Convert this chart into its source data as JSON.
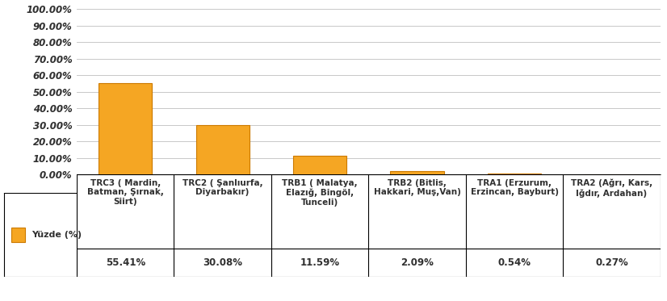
{
  "categories": [
    "TRC3 ( Mardin,\nBatman, Şırnak,\nSiirt)",
    "TRC2 ( Şanlıurfa,\nDiyarbakır)",
    "TRB1 ( Malatya,\nElazığ, Bingöl,\nTunceli)",
    "TRB2 (Bitlis,\nHakkari, Muş,Van)",
    "TRA1 (Erzurum,\nErzincan, Bayburt)",
    "TRA2 (Ağrı, Kars,\nIğdır, Ardahan)"
  ],
  "values": [
    55.41,
    30.08,
    11.59,
    2.09,
    0.54,
    0.27
  ],
  "value_labels": [
    "55.41%",
    "30.08%",
    "11.59%",
    "2.09%",
    "0.54%",
    "0.27%"
  ],
  "legend_label": "Yüzde (%)",
  "bar_color_face": "#F5A623",
  "bar_color_edge": "#CC7A00",
  "ylim": [
    0,
    100
  ],
  "yticks": [
    0,
    10,
    20,
    30,
    40,
    50,
    60,
    70,
    80,
    90,
    100
  ],
  "ytick_labels": [
    "0.00%",
    "10.00%",
    "20.00%",
    "30.00%",
    "40.00%",
    "50.00%",
    "60.00%",
    "70.00%",
    "80.00%",
    "90.00%",
    "100.00%"
  ],
  "background_color": "#FFFFFF",
  "grid_color": "#C8C8C8",
  "legend_square_color": "#F5A623",
  "legend_square_edge": "#CC7A00",
  "ytick_fontsize": 8.5,
  "xtick_fontsize": 7.5,
  "value_row_fontsize": 8.5
}
